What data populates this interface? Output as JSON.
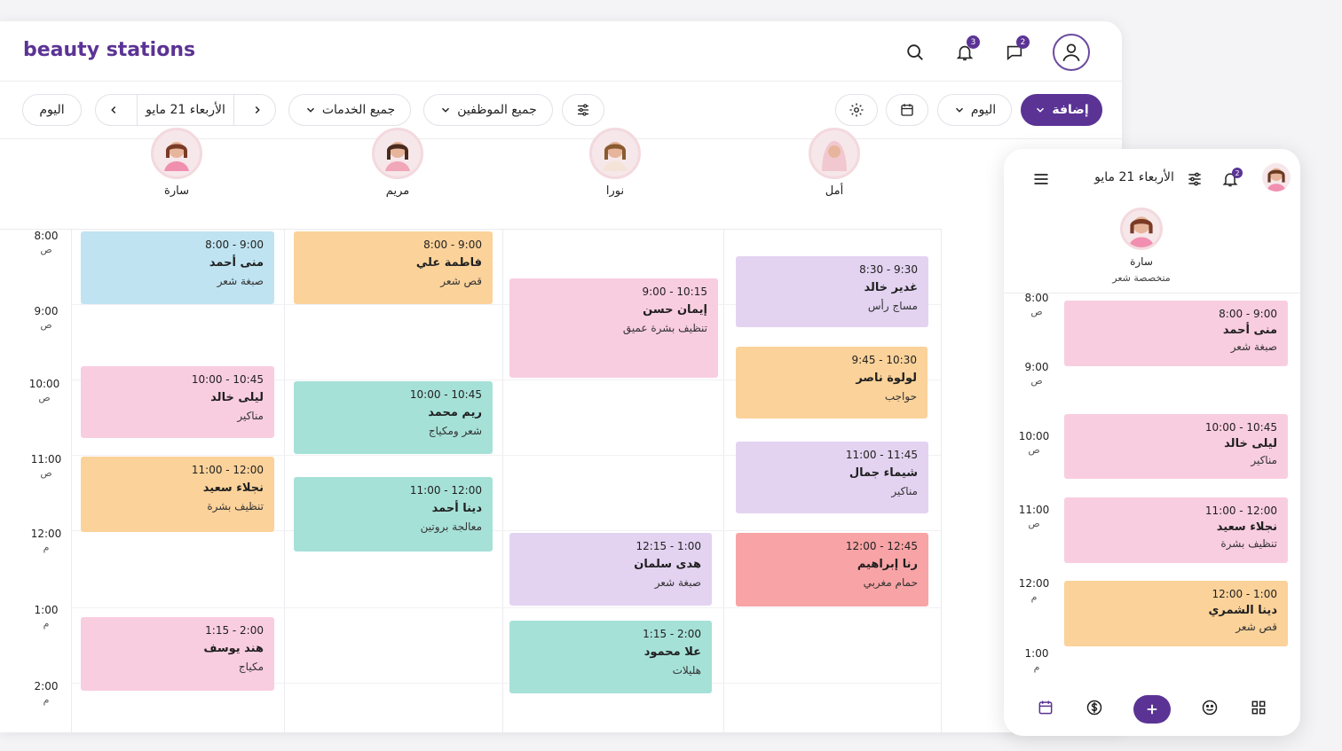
{
  "app": {
    "logo": "beauty stations"
  },
  "header": {
    "notif_count": "3",
    "msg_count": "2"
  },
  "toolbar": {
    "add_label": "إضافة",
    "view_label": "اليوم",
    "staff_filter": "جميع الموظفين",
    "service_filter": "جميع الخدمات",
    "date_label": "الأربعاء 21 مايو",
    "today_label": "اليوم"
  },
  "staff": [
    {
      "name": "سارة"
    },
    {
      "name": "مريم"
    },
    {
      "name": "نورا"
    },
    {
      "name": "أمل"
    }
  ],
  "time_slots": [
    {
      "time": "8:00",
      "ap": "ص"
    },
    {
      "time": "9:00",
      "ap": "ص"
    },
    {
      "time": "10:00",
      "ap": "ص"
    },
    {
      "time": "11:00",
      "ap": "ص"
    },
    {
      "time": "12:00",
      "ap": "م"
    },
    {
      "time": "1:00",
      "ap": "م"
    },
    {
      "time": "2:00",
      "ap": "م"
    }
  ],
  "appointments": {
    "sara": [
      {
        "time": "8:00 - 9:00",
        "client": "منى أحمد",
        "service": "صبغة شعر",
        "color": "#bfe3f1"
      },
      {
        "time": "10:00 - 10:45",
        "client": "ليلى خالد",
        "service": "مناكير",
        "color": "#f9cde0"
      },
      {
        "time": "11:00 - 12:00",
        "client": "نجلاء سعيد",
        "service": "تنظيف بشرة",
        "color": "#fbd29a"
      },
      {
        "time": "1:15 - 2:00",
        "client": "هند يوسف",
        "service": "مكياج",
        "color": "#f9cde0"
      }
    ],
    "mariam": [
      {
        "time": "8:00 - 9:00",
        "client": "فاطمة علي",
        "service": "قص شعر",
        "color": "#fbd29a"
      },
      {
        "time": "10:00 - 10:45",
        "client": "ريم محمد",
        "service": "شعر ومكياج",
        "color": "#a6e1d8"
      },
      {
        "time": "11:00 - 12:00",
        "client": "دينا أحمد",
        "service": "معالجة بروتين",
        "color": "#a6e1d8"
      }
    ],
    "noura": [
      {
        "time": "9:00 - 10:15",
        "client": "إيمان حسن",
        "service": "تنظيف بشرة عميق",
        "color": "#f9cde0"
      },
      {
        "time": "12:15 - 1:00",
        "client": "هدى سلمان",
        "service": "صبغة شعر",
        "color": "#e3d3f1"
      },
      {
        "time": "1:15 - 2:00",
        "client": "علا محمود",
        "service": "هليلات",
        "color": "#a6e1d8"
      }
    ],
    "amal": [
      {
        "time": "8:30 - 9:30",
        "client": "غدير خالد",
        "service": "مساج رأس",
        "color": "#e3d3f1"
      },
      {
        "time": "9:45 - 10:30",
        "client": "لولوة ناصر",
        "service": "حواجب",
        "color": "#fbd29a"
      },
      {
        "time": "11:00 - 11:45",
        "client": "شيماء جمال",
        "service": "مناكير",
        "color": "#e3d3f1"
      },
      {
        "time": "12:00 - 12:45",
        "client": "رنا إبراهيم",
        "service": "حمام مغربي",
        "color": "#f8a3a5"
      }
    ]
  },
  "mobile": {
    "date_label": "الأربعاء 21 مايو",
    "notif_count": "2",
    "staff_name": "سارة",
    "staff_role": "متخصصة شعر",
    "time_slots": [
      {
        "time": "8:00",
        "ap": "ص"
      },
      {
        "time": "9:00",
        "ap": "ص"
      },
      {
        "time": "10:00",
        "ap": "ص"
      },
      {
        "time": "11:00",
        "ap": "ص"
      },
      {
        "time": "12:00",
        "ap": "م"
      },
      {
        "time": "1:00",
        "ap": "م"
      }
    ],
    "appointments": [
      {
        "time": "8:00 - 9:00",
        "client": "منى أحمد",
        "service": "صبغة شعر"
      },
      {
        "time": "10:00 - 10:45",
        "client": "ليلى خالد",
        "service": "مناكير"
      },
      {
        "time": "11:00 - 12:00",
        "client": "نجلاء سعيد",
        "service": "تنظيف بشرة"
      },
      {
        "time": "12:00 - 1:00",
        "client": "دينا الشمري",
        "service": "قص شعر"
      }
    ]
  }
}
